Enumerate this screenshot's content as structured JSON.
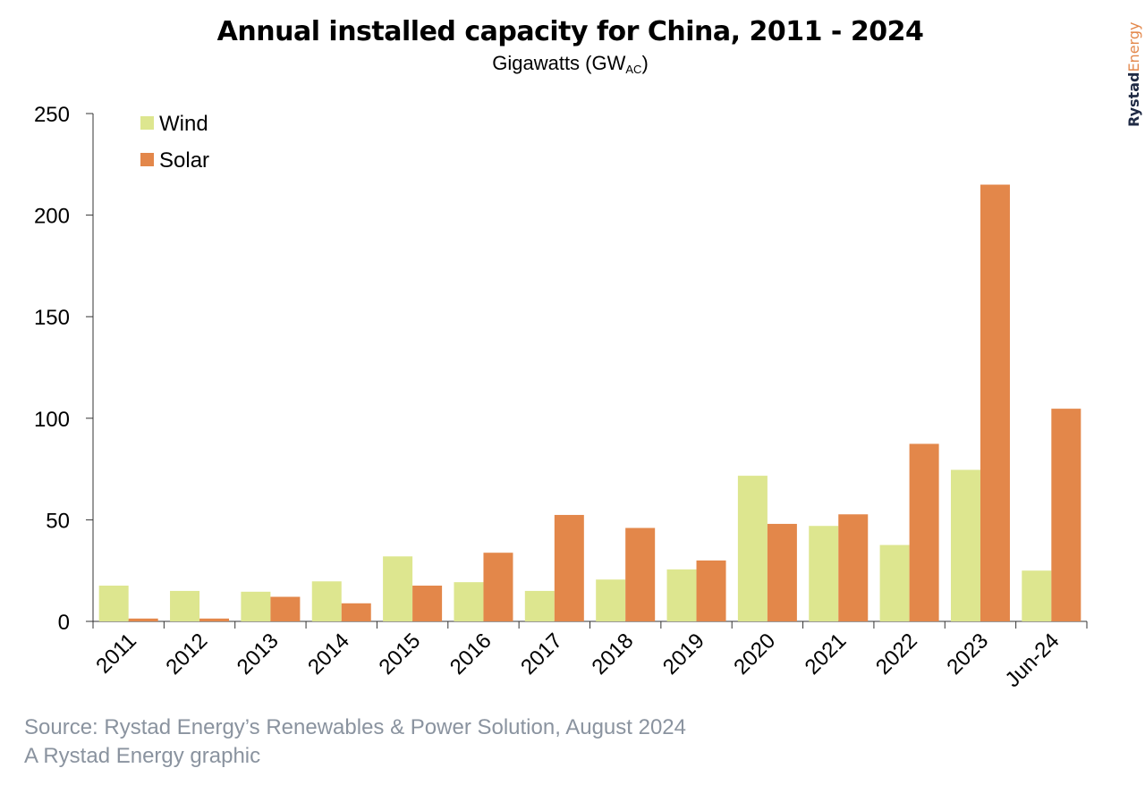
{
  "chart_data": {
    "type": "bar",
    "title": "Annual installed capacity for China, 2011 - 2024",
    "subtitle_main": "Gigawatts (GW",
    "subtitle_sub": "AC",
    "subtitle_end": ")",
    "categories": [
      "2011",
      "2012",
      "2013",
      "2014",
      "2015",
      "2016",
      "2017",
      "2018",
      "2019",
      "2020",
      "2021",
      "2022",
      "2023",
      "Jun-24"
    ],
    "series": [
      {
        "name": "Wind",
        "color": "#dde68f",
        "values": [
          17.6,
          15.0,
          14.6,
          19.7,
          32.0,
          19.3,
          15.0,
          20.6,
          25.6,
          71.7,
          47.0,
          37.6,
          74.6,
          25.0
        ]
      },
      {
        "name": "Solar",
        "color": "#e3874a",
        "values": [
          1.4,
          1.4,
          12.1,
          8.9,
          17.6,
          33.8,
          52.4,
          46.0,
          30.0,
          48.0,
          52.7,
          87.4,
          215.0,
          104.7
        ]
      }
    ],
    "ylim": [
      0,
      250
    ],
    "yticks": [
      0,
      50,
      100,
      150,
      200,
      250
    ],
    "ytick_labels": [
      "0",
      "50",
      "100",
      "150",
      "200",
      "250"
    ],
    "xlabel": "",
    "ylabel": "",
    "grid": false,
    "legend_position": "top-left"
  },
  "footer": {
    "source": "Source: Rystad Energy’s Renewables & Power Solution, August 2024",
    "credit": "A Rystad Energy graphic"
  },
  "brand": {
    "part1": "Rystad",
    "part2": "Energy"
  }
}
